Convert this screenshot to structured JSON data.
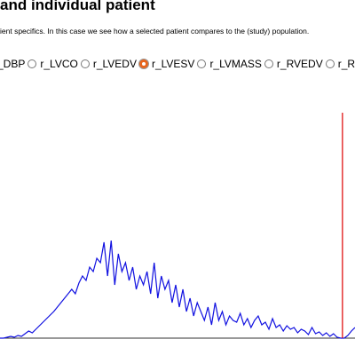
{
  "header": {
    "title": "and individual patient",
    "description": "ient specifics. In this case we see how a selected patient compares to the (study) population."
  },
  "radios": {
    "options": [
      "_DBP",
      "r_LVCO",
      "r_LVEDV",
      "r_LVESV",
      "r_LVMASS",
      "r_RVEDV",
      "r_RVES"
    ],
    "selected": 3
  },
  "chart_data": {
    "type": "line",
    "series": [
      {
        "color": "#1010e0",
        "values": [
          0,
          0,
          1,
          2,
          1,
          3,
          2,
          5,
          8,
          6,
          10,
          14,
          18,
          22,
          26,
          30,
          35,
          40,
          45,
          50,
          55,
          50,
          62,
          70,
          65,
          80,
          75,
          90,
          85,
          108,
          70,
          110,
          60,
          95,
          75,
          85,
          65,
          80,
          55,
          70,
          60,
          75,
          50,
          85,
          45,
          70,
          55,
          65,
          40,
          60,
          35,
          55,
          30,
          45,
          25,
          40,
          30,
          20,
          35,
          15,
          40,
          20,
          30,
          15,
          25,
          20,
          18,
          28,
          15,
          22,
          12,
          20,
          25,
          15,
          18,
          10,
          22,
          12,
          15,
          8,
          14,
          10,
          12,
          6,
          10,
          8,
          4,
          12,
          5,
          7,
          3,
          6,
          2,
          5,
          1,
          0,
          0,
          3,
          8,
          12
        ]
      }
    ],
    "xlim": [
      0,
      99
    ],
    "ylim": [
      0,
      130
    ],
    "reference_line": {
      "x": 95.5,
      "color": "#dd0000"
    }
  }
}
